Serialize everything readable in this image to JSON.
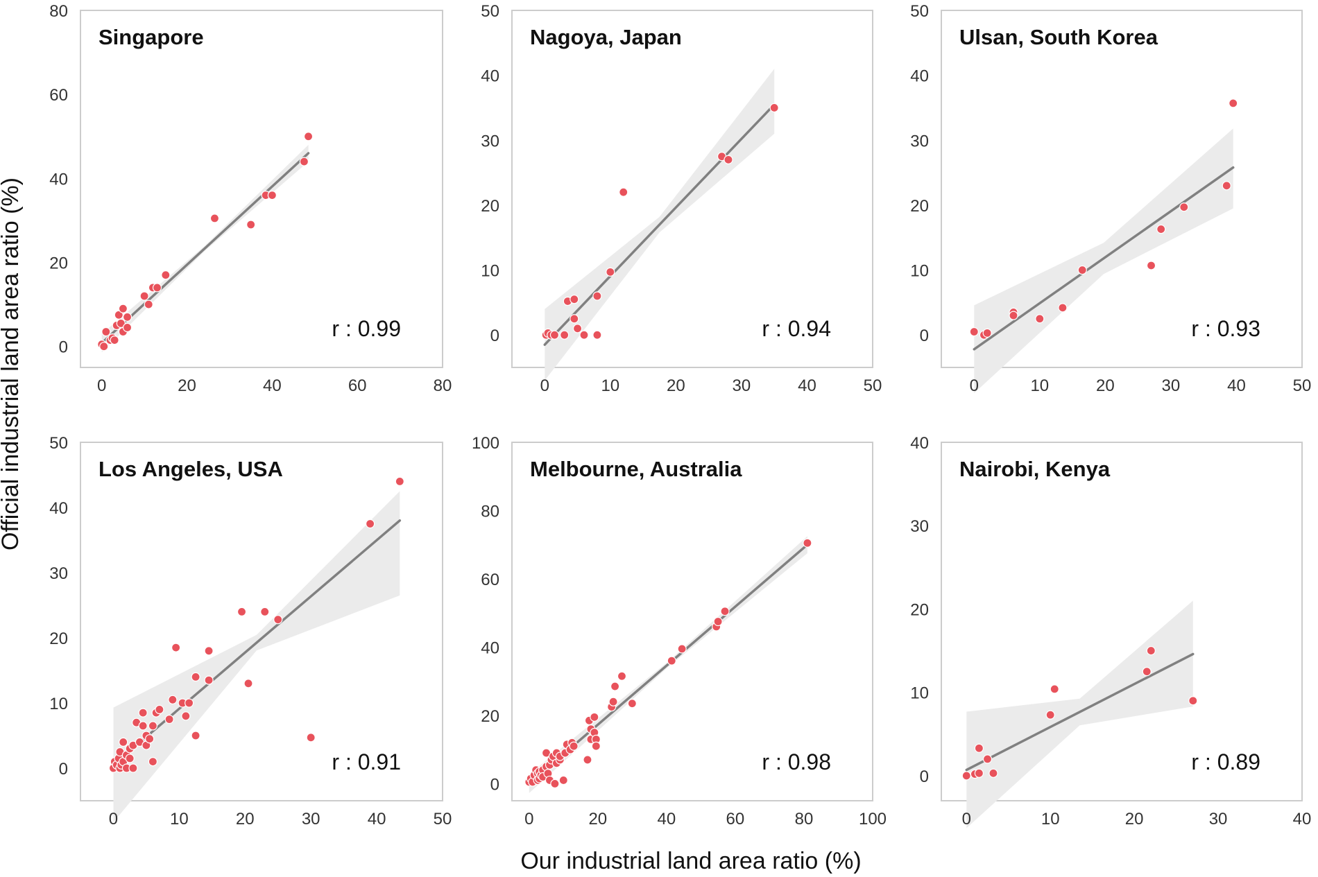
{
  "figure": {
    "xlabel": "Our industrial land area ratio (%)",
    "ylabel": "Official industrial land area ratio (%)"
  },
  "colors": {
    "point": "#e8525b",
    "line": "#808080",
    "band": "#ebebeb",
    "frame": "#cccccc"
  },
  "chart_data": [
    {
      "type": "scatter",
      "title": "Singapore",
      "r_label": "r : 0.99",
      "xlim": [
        -5,
        80
      ],
      "ylim": [
        -5,
        80
      ],
      "xticks": [
        0,
        20,
        40,
        60,
        80
      ],
      "yticks": [
        0,
        20,
        40,
        60,
        80
      ],
      "x": [
        0,
        0.5,
        1,
        2,
        2.5,
        3,
        3.5,
        4,
        4.5,
        5,
        5,
        6,
        6,
        10,
        11,
        12,
        13,
        15,
        26.5,
        35,
        38.5,
        40,
        47.5,
        48.5
      ],
      "y": [
        0.5,
        0,
        3.5,
        1.5,
        2,
        1.5,
        5,
        7.5,
        5.5,
        9,
        3.5,
        7,
        4.5,
        12,
        10,
        14,
        14,
        17,
        30.5,
        29,
        36,
        36,
        44,
        50
      ],
      "fit": {
        "x": [
          0,
          48.5
        ],
        "y": [
          0.8,
          46
        ],
        "band_lower_end": 44,
        "band_upper_end": 48,
        "band_mid_width": 0.6
      }
    },
    {
      "type": "scatter",
      "title": "Nagoya, Japan",
      "r_label": "r : 0.94",
      "xlim": [
        -5,
        50
      ],
      "ylim": [
        -5,
        50
      ],
      "xticks": [
        0,
        10,
        20,
        30,
        40,
        50
      ],
      "yticks": [
        0,
        10,
        20,
        30,
        40,
        50
      ],
      "x": [
        0.2,
        0.5,
        1,
        1.5,
        3,
        3.5,
        4.5,
        4.5,
        5,
        6,
        8,
        8,
        10,
        12,
        27,
        28,
        35
      ],
      "y": [
        0,
        0.3,
        0,
        0,
        0,
        5.2,
        5.5,
        2.5,
        1,
        0,
        6,
        0,
        9.7,
        22,
        27.5,
        27,
        35
      ],
      "fit": {
        "x": [
          0,
          35
        ],
        "y": [
          -1.5,
          35.5
        ],
        "band_lower_end": 31,
        "band_upper_end": 41,
        "band_mid_width": 1.2
      }
    },
    {
      "type": "scatter",
      "title": "Ulsan, South Korea",
      "r_label": "r : 0.93",
      "xlim": [
        -5,
        50
      ],
      "ylim": [
        -5,
        50
      ],
      "xticks": [
        0,
        10,
        20,
        30,
        40,
        50
      ],
      "yticks": [
        0,
        10,
        20,
        30,
        40,
        50
      ],
      "x": [
        0,
        1.5,
        2,
        6,
        6,
        10,
        13.5,
        16.5,
        27,
        28.5,
        32,
        38.5,
        39.5
      ],
      "y": [
        0.5,
        0,
        0.3,
        3.5,
        3,
        2.5,
        4.2,
        10,
        10.7,
        16.3,
        19.7,
        23,
        35.7
      ],
      "fit": {
        "x": [
          0,
          39.5
        ],
        "y": [
          -2.2,
          25.8
        ],
        "band_lower_end": 19.5,
        "band_upper_end": 31.8,
        "band_mid_width": 2.4
      }
    },
    {
      "type": "scatter",
      "title": "Los Angeles, USA",
      "r_label": "r : 0.91",
      "xlim": [
        -5,
        50
      ],
      "ylim": [
        -5,
        50
      ],
      "xticks": [
        0,
        10,
        20,
        30,
        40,
        50
      ],
      "yticks": [
        0,
        10,
        20,
        30,
        40,
        50
      ],
      "x": [
        0,
        0.2,
        0.5,
        0.8,
        1,
        1,
        1.2,
        1.5,
        1.5,
        2,
        2,
        2.5,
        2.5,
        3,
        3,
        3.5,
        4,
        4.5,
        4.5,
        5,
        5,
        5.5,
        6,
        6,
        6.5,
        7,
        8.5,
        9,
        9.5,
        10.5,
        11,
        11.5,
        12.5,
        12.5,
        14.5,
        14.5,
        19.5,
        20.5,
        23,
        25,
        30,
        39,
        43.5
      ],
      "y": [
        0,
        1,
        0.5,
        1.5,
        0,
        2.5,
        0.5,
        4,
        1,
        2,
        0,
        3,
        1.5,
        0,
        3.5,
        7,
        4,
        6.5,
        8.5,
        5,
        3.5,
        4.5,
        6.5,
        1,
        8.5,
        9,
        7.5,
        10.5,
        18.5,
        10,
        8,
        10,
        14,
        5,
        18,
        13.5,
        24,
        13,
        24,
        22.8,
        4.7,
        37.5,
        44
      ],
      "fit": {
        "x": [
          0,
          43.5
        ],
        "y": [
          0.5,
          38
        ],
        "band_lower_end": 26.5,
        "band_upper_end": 42.5,
        "band_mid_width": 1.2
      }
    },
    {
      "type": "scatter",
      "title": "Melbourne, Australia",
      "r_label": "r : 0.98",
      "xlim": [
        -5,
        100
      ],
      "ylim": [
        -5,
        100
      ],
      "xticks": [
        0,
        20,
        40,
        60,
        80,
        100
      ],
      "yticks": [
        0,
        20,
        40,
        60,
        80,
        100
      ],
      "x": [
        0,
        0.5,
        1,
        1.5,
        2,
        2.5,
        2.5,
        3,
        3,
        3.5,
        4,
        4,
        5,
        5,
        5.5,
        6,
        6,
        6.5,
        7,
        7.5,
        8,
        8,
        9,
        9,
        10,
        10.5,
        11,
        12,
        12.5,
        13,
        17,
        17.5,
        18,
        18,
        19,
        19,
        19.5,
        19.5,
        24,
        24.5,
        25,
        27,
        30,
        41.5,
        44.5,
        54.5,
        55,
        57,
        81
      ],
      "y": [
        0.5,
        1.5,
        0.5,
        2.5,
        4,
        1,
        3,
        1.5,
        3.5,
        2.5,
        4,
        2,
        9,
        5,
        3,
        5.5,
        1,
        7,
        8,
        0,
        6,
        9,
        7,
        8,
        1,
        9,
        11.5,
        10,
        12,
        11,
        7,
        18.5,
        13,
        16,
        15,
        19.5,
        13,
        11,
        22.5,
        24,
        28.5,
        31.5,
        23.5,
        36,
        39.5,
        46,
        47.5,
        50.5,
        70.5
      ],
      "fit": {
        "x": [
          0,
          81
        ],
        "y": [
          0,
          70
        ],
        "band_lower_end": 67.5,
        "band_upper_end": 72.5,
        "band_mid_width": 0.8
      }
    },
    {
      "type": "scatter",
      "title": "Nairobi, Kenya",
      "r_label": "r : 0.89",
      "xlim": [
        -3,
        40
      ],
      "ylim": [
        -3,
        40
      ],
      "xticks": [
        0,
        10,
        20,
        30,
        40
      ],
      "yticks": [
        0,
        10,
        20,
        30,
        40
      ],
      "x": [
        0,
        1,
        1.5,
        1.5,
        2.5,
        3.2,
        10,
        10.5,
        21.5,
        22,
        27
      ],
      "y": [
        0,
        0.2,
        0.3,
        3.3,
        2,
        0.3,
        7.3,
        10.4,
        12.5,
        15,
        9
      ],
      "fit": {
        "x": [
          0,
          27
        ],
        "y": [
          0.7,
          14.6
        ],
        "band_lower_end": 8.3,
        "band_upper_end": 21,
        "band_mid_width": 1.6
      }
    }
  ]
}
